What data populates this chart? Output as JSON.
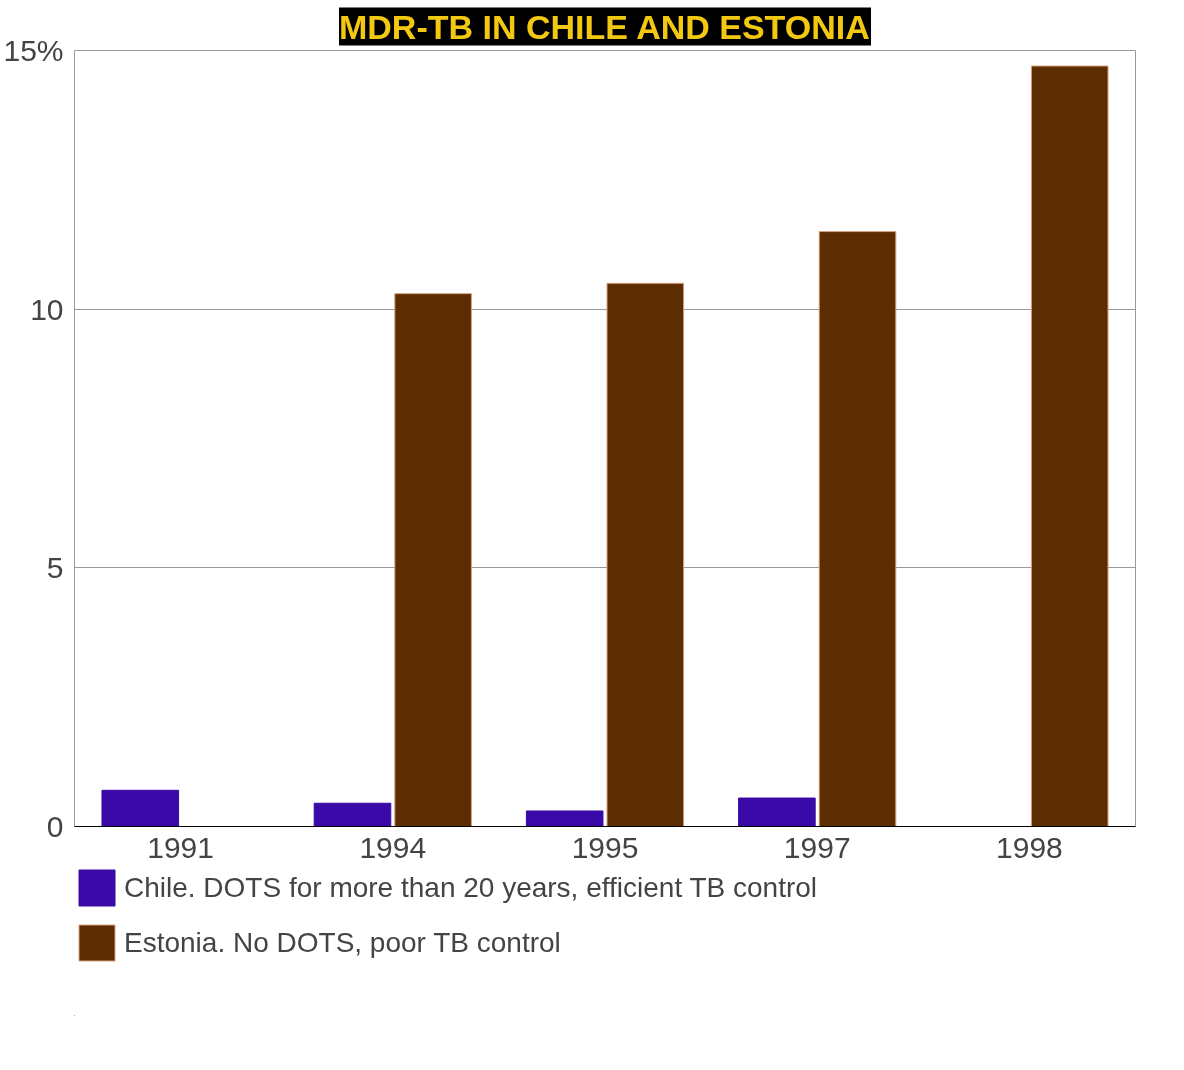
{
  "chart_data": {
    "type": "bar",
    "title": "MDR-TB IN CHILE AND ESTONIA",
    "categories": [
      "1991",
      "1994",
      "1995",
      "1997",
      "1998"
    ],
    "series": [
      {
        "name": "Chile. DOTS for more than 20 years, efficient TB control",
        "color": "#3a0aa8",
        "values": [
          0.7,
          0.45,
          0.3,
          0.55,
          null
        ]
      },
      {
        "name": "Estonia. No DOTS, poor TB control",
        "color": "#5c2d00",
        "values": [
          null,
          10.3,
          10.5,
          11.5,
          14.7
        ]
      }
    ],
    "ylim": [
      0,
      15
    ],
    "yticks": [
      0,
      5,
      {
        "value": 10,
        "label": "10"
      },
      {
        "value": 15,
        "label": "15%"
      }
    ],
    "grid": "y",
    "legend": "bottom"
  }
}
